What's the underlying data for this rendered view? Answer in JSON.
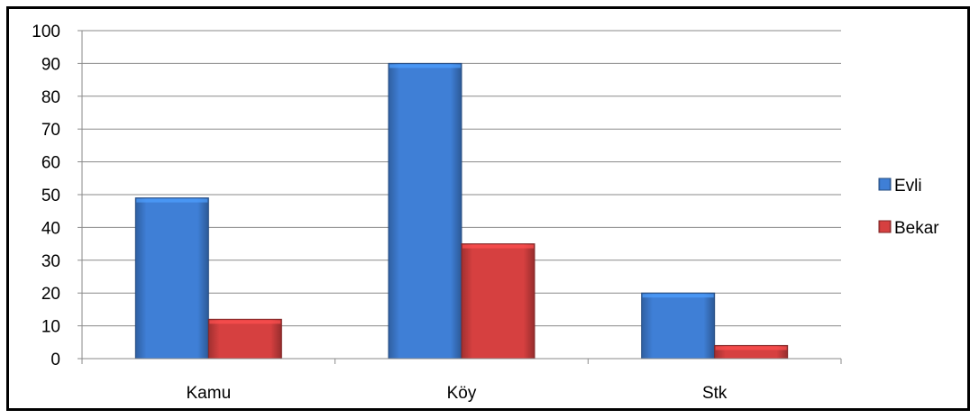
{
  "chart_data": {
    "type": "bar",
    "categories": [
      "Kamu",
      "Köy",
      "Stk"
    ],
    "series": [
      {
        "name": "Evli",
        "values": [
          49,
          90,
          20
        ],
        "color": "#3F7FD6"
      },
      {
        "name": "Bekar",
        "values": [
          12,
          35,
          4
        ],
        "color": "#D64040"
      }
    ],
    "ylim": [
      0,
      100
    ],
    "yticks": [
      0,
      10,
      20,
      30,
      40,
      50,
      60,
      70,
      80,
      90,
      100
    ],
    "grid": true,
    "legend_position": "right",
    "title": "",
    "xlabel": "",
    "ylabel": ""
  }
}
